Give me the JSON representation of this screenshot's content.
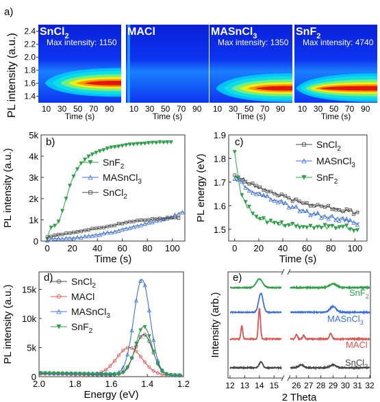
{
  "panel_letters": {
    "a": "a)",
    "b": "b)",
    "c": "c)",
    "d": "d)",
    "e": "e)"
  },
  "heatmaps": {
    "ylabel": "PL intensity (a.u.)",
    "ytick_labels": [
      "2.4",
      "2.2",
      "2.0",
      "1.8",
      "1.6",
      "1.4"
    ],
    "xtick_labels": [
      "10",
      "30",
      "50",
      "70",
      "90"
    ],
    "xlabel": "Time (s)",
    "panels": [
      {
        "title": "SnCl",
        "sub": "2",
        "max": "Max intensity: 1150"
      },
      {
        "title": "MACl",
        "sub": "",
        "max": ""
      },
      {
        "title": "MASnCl",
        "sub": "3",
        "max": "Max intensity: 1350"
      },
      {
        "title": "SnF",
        "sub": "2",
        "max": "Max intensity: 4740"
      }
    ]
  },
  "chart_data": [
    {
      "id": "a",
      "type": "heatmap",
      "ylabel": "PL intensity (a.u.)",
      "xlabel": "Time (s)",
      "xlim": [
        0,
        105
      ],
      "ylim": [
        1.3,
        2.5
      ],
      "colormap": "jet",
      "panels": [
        {
          "name": "SnCl2",
          "max_intensity": 1150,
          "peak_energy": 1.6,
          "peak_time": 90
        },
        {
          "name": "MACl",
          "max_intensity": null
        },
        {
          "name": "MASnCl3",
          "max_intensity": 1350,
          "peak_energy": 1.52,
          "peak_time": 95
        },
        {
          "name": "SnF2",
          "max_intensity": 4740,
          "peak_energy": 1.52,
          "peak_time": 70
        }
      ]
    },
    {
      "id": "b",
      "type": "line",
      "xlabel": "Time (s)",
      "ylabel": "PL intensity (a.u.)",
      "xlim": [
        -5,
        110
      ],
      "ylim": [
        0,
        5000
      ],
      "xticks": [
        0,
        20,
        40,
        60,
        80,
        100
      ],
      "yticks": [
        0,
        1000,
        2000,
        3000,
        4000,
        5000
      ],
      "ytick_labels": [
        "0",
        "1k",
        "2k",
        "3k",
        "4k",
        "5k"
      ],
      "legend_position": "right",
      "series": [
        {
          "name": "SnF2",
          "label": "SnF",
          "sub": "2",
          "color": "#2e9e4a",
          "marker": "triangle-down",
          "x": [
            0,
            2,
            4,
            6,
            8,
            10,
            12,
            14,
            16,
            18,
            20,
            22,
            24,
            26,
            28,
            30,
            35,
            40,
            45,
            50,
            55,
            60,
            65,
            70,
            75,
            80,
            85,
            90,
            95,
            100
          ],
          "y": [
            100,
            600,
            700,
            700,
            800,
            1000,
            1400,
            1800,
            2200,
            2600,
            2900,
            3200,
            3400,
            3600,
            3700,
            3850,
            4050,
            4200,
            4300,
            4380,
            4450,
            4500,
            4550,
            4580,
            4600,
            4620,
            4640,
            4650,
            4660,
            4670
          ]
        },
        {
          "name": "MASnCl3",
          "label": "MASnCl",
          "sub": "3",
          "color": "#3a6fd8",
          "marker": "triangle-up-open",
          "x": [
            0,
            10,
            20,
            30,
            40,
            50,
            60,
            70,
            80,
            90,
            100,
            105,
            110
          ],
          "y": [
            50,
            100,
            150,
            200,
            300,
            400,
            550,
            700,
            850,
            1000,
            1150,
            1300,
            1400
          ]
        },
        {
          "name": "SnCl2",
          "label": "SnCl",
          "sub": "2",
          "color": "#444444",
          "marker": "square-open",
          "x": [
            0,
            5,
            10,
            20,
            30,
            40,
            50,
            60,
            70,
            80,
            90,
            100,
            105
          ],
          "y": [
            200,
            250,
            300,
            400,
            500,
            600,
            700,
            850,
            950,
            1000,
            1050,
            1100,
            1100
          ]
        }
      ]
    },
    {
      "id": "c",
      "type": "line",
      "xlabel": "Time (s)",
      "ylabel": "PL energy (eV)",
      "xlim": [
        -5,
        110
      ],
      "ylim": [
        1.45,
        1.9
      ],
      "xticks": [
        0,
        20,
        40,
        60,
        80,
        100
      ],
      "yticks": [
        1.5,
        1.6,
        1.7,
        1.8,
        1.9
      ],
      "legend_position": "top-right",
      "series": [
        {
          "name": "SnCl2",
          "label": "SnCl",
          "sub": "2",
          "color": "#444444",
          "marker": "square-open",
          "x": [
            0,
            5,
            10,
            15,
            20,
            30,
            40,
            50,
            60,
            70,
            80,
            90,
            100,
            104
          ],
          "y": [
            1.73,
            1.72,
            1.7,
            1.69,
            1.68,
            1.66,
            1.64,
            1.62,
            1.61,
            1.6,
            1.59,
            1.58,
            1.57,
            1.57
          ]
        },
        {
          "name": "MASnCl3",
          "label": "MASnCl",
          "sub": "3",
          "color": "#3a6fd8",
          "marker": "triangle-up-open",
          "x": [
            0,
            5,
            10,
            15,
            20,
            30,
            40,
            50,
            60,
            70,
            80,
            90,
            100,
            104
          ],
          "y": [
            1.72,
            1.7,
            1.68,
            1.66,
            1.65,
            1.63,
            1.61,
            1.59,
            1.57,
            1.56,
            1.55,
            1.54,
            1.53,
            1.52
          ]
        },
        {
          "name": "SnF2",
          "label": "SnF",
          "sub": "2",
          "color": "#2e9e4a",
          "marker": "triangle-down",
          "x": [
            0,
            2,
            5,
            8,
            10,
            15,
            20,
            25,
            30,
            40,
            50,
            60,
            70,
            80,
            90,
            100,
            104
          ],
          "y": [
            1.83,
            1.75,
            1.65,
            1.62,
            1.6,
            1.57,
            1.55,
            1.54,
            1.53,
            1.52,
            1.52,
            1.51,
            1.51,
            1.51,
            1.51,
            1.5,
            1.5
          ]
        }
      ]
    },
    {
      "id": "d",
      "type": "line",
      "xlabel": "Energy (eV)",
      "ylabel": "PL intensity (a.u.)",
      "xlim": [
        2.0,
        1.2
      ],
      "ylim": [
        0,
        18000
      ],
      "xticks": [
        2.0,
        1.8,
        1.6,
        1.4,
        1.2
      ],
      "yticks": [
        0,
        5000,
        10000,
        15000
      ],
      "ytick_labels": [
        "0",
        "5k",
        "10k",
        "15k"
      ],
      "legend_position": "top-left",
      "series": [
        {
          "name": "SnCl2",
          "label": "SnCl",
          "sub": "2",
          "color": "#444444",
          "marker": "circle-open",
          "peak": 1.42,
          "amp": 7000,
          "sigma": 0.05,
          "base": 500,
          "baseline_drop": 350
        },
        {
          "name": "MACl",
          "label": "MACl",
          "sub": "",
          "color": "#d9534f",
          "marker": "circle-open",
          "peak": 1.5,
          "amp": 4700,
          "sigma": 0.07,
          "base": 500,
          "baseline_drop": 300
        },
        {
          "name": "MASnCl3",
          "label": "MASnCl",
          "sub": "3",
          "color": "#3a6fd8",
          "marker": "triangle-up-open",
          "peak": 1.43,
          "amp": 16300,
          "sigma": 0.045,
          "base": 700,
          "baseline_drop": 400
        },
        {
          "name": "SnF2",
          "label": "SnF",
          "sub": "2",
          "color": "#2e9e4a",
          "marker": "triangle-down",
          "peak": 1.42,
          "amp": 8300,
          "sigma": 0.045,
          "base": 600,
          "baseline_drop": 400
        }
      ]
    },
    {
      "id": "e",
      "type": "line",
      "xlabel": "2 Theta",
      "ylabel": "Intensity (arb.)",
      "broken_x_axis": true,
      "segments": [
        [
          12,
          15.5
        ],
        [
          25.5,
          32
        ]
      ],
      "xticks": [
        12,
        13,
        14,
        15,
        26,
        27,
        28,
        29,
        30,
        31,
        32
      ],
      "series": [
        {
          "name": "SnF2",
          "label": "SnF",
          "sub": "2",
          "color": "#2e9e4a",
          "offset": 3,
          "peaks": [
            [
              14.0,
              0.45,
              0.22
            ],
            [
              29.0,
              0.2,
              0.3
            ]
          ]
        },
        {
          "name": "MASnCl3",
          "label": "MASnCl",
          "sub": "3",
          "color": "#3a6fd8",
          "offset": 2,
          "peaks": [
            [
              14.1,
              1.0,
              0.15
            ],
            [
              29.0,
              0.3,
              0.25
            ]
          ]
        },
        {
          "name": "MACl",
          "label": "MACl",
          "sub": "",
          "color": "#d9534f",
          "offset": 1,
          "peaks": [
            [
              12.8,
              0.7,
              0.06
            ],
            [
              14.0,
              1.6,
              0.07
            ],
            [
              26.0,
              0.25,
              0.08
            ],
            [
              26.6,
              0.2,
              0.08
            ],
            [
              28.8,
              0.3,
              0.1
            ]
          ]
        },
        {
          "name": "SnCl2",
          "label": "SnCl",
          "sub": "2",
          "color": "#444444",
          "offset": 0,
          "peaks": [
            [
              14.1,
              0.3,
              0.12
            ],
            [
              26.4,
              0.15,
              0.2
            ],
            [
              29.0,
              0.15,
              0.25
            ]
          ]
        }
      ]
    }
  ]
}
